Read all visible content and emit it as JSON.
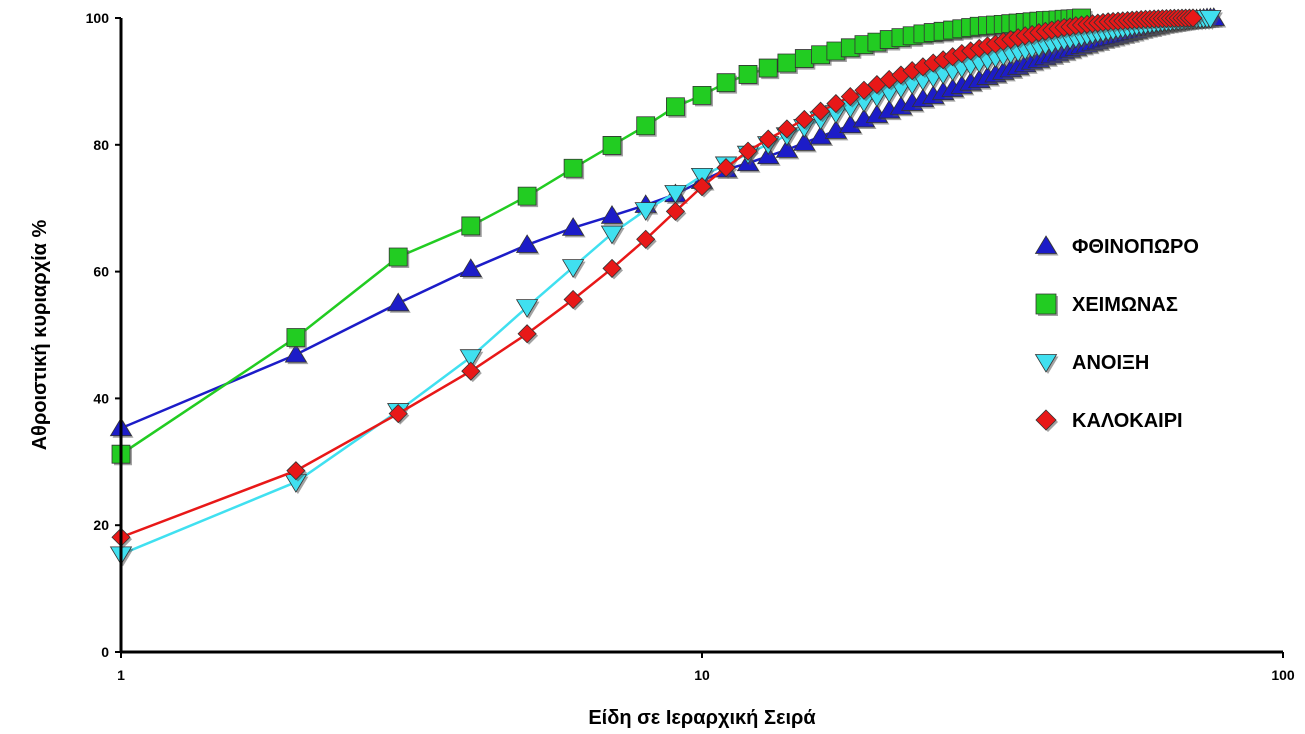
{
  "chart_data": {
    "type": "line",
    "title": "",
    "xlabel": "Είδη σε Ιεραρχική Σειρά",
    "ylabel": "Αθροιστική κυριαρχία %",
    "xscale": "log",
    "xlim": [
      1,
      100
    ],
    "ylim": [
      0,
      100
    ],
    "xticks": [
      {
        "value": 1,
        "label": "1"
      },
      {
        "value": 10,
        "label": "10"
      },
      {
        "value": 100,
        "label": "100"
      }
    ],
    "yticks": [
      {
        "value": 0,
        "label": "0"
      },
      {
        "value": 20,
        "label": "20"
      },
      {
        "value": 40,
        "label": "40"
      },
      {
        "value": 60,
        "label": "60"
      },
      {
        "value": 80,
        "label": "80"
      },
      {
        "value": 100,
        "label": "100"
      }
    ],
    "grid": false,
    "legend_position": "right",
    "series": [
      {
        "name": "ΦΘΙΝΟΠΩΡΟ",
        "color": "#1c1cc8",
        "marker": "triangle-up",
        "x": [
          1,
          2,
          3,
          4,
          5,
          6,
          7,
          8,
          9,
          10,
          11,
          12,
          13,
          14,
          15,
          16,
          17,
          18,
          19,
          20,
          21,
          22,
          23,
          24,
          25,
          26,
          27,
          28,
          29,
          30,
          31,
          32,
          33,
          34,
          35,
          36,
          37,
          38,
          39,
          40,
          41,
          42,
          43,
          44,
          45,
          46,
          47,
          48,
          49,
          50,
          51,
          52,
          53,
          54,
          55,
          56,
          57,
          58,
          59,
          60,
          61,
          62,
          63,
          64,
          65,
          66,
          67,
          68,
          69,
          70,
          71,
          72,
          73,
          74,
          75,
          76
        ],
        "values": [
          35.3,
          46.9,
          55.0,
          60.4,
          64.2,
          66.9,
          68.8,
          70.5,
          72.2,
          74.3,
          76.1,
          77.1,
          78.2,
          79.2,
          80.3,
          81.3,
          82.2,
          83.1,
          84.0,
          84.7,
          85.4,
          86.0,
          86.6,
          87.2,
          87.7,
          88.3,
          88.8,
          89.3,
          89.8,
          90.2,
          90.7,
          91.1,
          91.5,
          91.9,
          92.3,
          92.7,
          93.1,
          93.4,
          93.8,
          94.1,
          94.4,
          94.7,
          95.0,
          95.3,
          95.6,
          95.8,
          96.1,
          96.3,
          96.6,
          96.8,
          97.0,
          97.2,
          97.4,
          97.6,
          97.8,
          98.0,
          98.2,
          98.4,
          98.5,
          98.7,
          98.8,
          99.0,
          99.1,
          99.2,
          99.3,
          99.4,
          99.5,
          99.6,
          99.7,
          99.75,
          99.8,
          99.85,
          99.9,
          99.95,
          99.98,
          100.0
        ]
      },
      {
        "name": "ΧΕΙΜΩΝΑΣ",
        "color": "#22cc22",
        "marker": "square",
        "x": [
          1,
          2,
          3,
          4,
          5,
          6,
          7,
          8,
          9,
          10,
          11,
          12,
          13,
          14,
          15,
          16,
          17,
          18,
          19,
          20,
          21,
          22,
          23,
          24,
          25,
          26,
          27,
          28,
          29,
          30,
          31,
          32,
          33,
          34,
          35,
          36,
          37,
          38,
          39,
          40,
          41,
          42,
          43,
          44,
          45
        ],
        "values": [
          31.2,
          49.6,
          62.3,
          67.2,
          71.9,
          76.3,
          79.9,
          83.0,
          86.0,
          87.8,
          89.8,
          91.1,
          92.1,
          92.9,
          93.6,
          94.2,
          94.8,
          95.3,
          95.8,
          96.2,
          96.6,
          96.9,
          97.2,
          97.5,
          97.7,
          97.9,
          98.1,
          98.3,
          98.5,
          98.7,
          98.8,
          98.9,
          99.0,
          99.1,
          99.2,
          99.3,
          99.4,
          99.5,
          99.6,
          99.65,
          99.7,
          99.8,
          99.85,
          99.9,
          100.0
        ]
      },
      {
        "name": "ΑΝΟΙΞΗ",
        "color": "#40e0f0",
        "marker": "triangle-down",
        "x": [
          1,
          2,
          3,
          4,
          5,
          6,
          7,
          8,
          9,
          10,
          11,
          12,
          13,
          14,
          15,
          16,
          17,
          18,
          19,
          20,
          21,
          22,
          23,
          24,
          25,
          26,
          27,
          28,
          29,
          30,
          31,
          32,
          33,
          34,
          35,
          36,
          37,
          38,
          39,
          40,
          41,
          42,
          43,
          44,
          45,
          46,
          47,
          48,
          49,
          50,
          51,
          52,
          53,
          54,
          55,
          56,
          57,
          58,
          59,
          60,
          61,
          62,
          63,
          64,
          65,
          66,
          67,
          68,
          69,
          70,
          71,
          72,
          73,
          74,
          75
        ],
        "values": [
          15.4,
          26.8,
          38.0,
          46.5,
          54.4,
          60.7,
          66.0,
          69.7,
          72.4,
          75.1,
          76.9,
          78.6,
          80.1,
          81.5,
          82.8,
          84.0,
          85.0,
          85.9,
          86.8,
          87.6,
          88.3,
          89.0,
          89.6,
          90.2,
          90.7,
          91.2,
          91.7,
          92.2,
          92.6,
          93.0,
          93.4,
          93.8,
          94.1,
          94.4,
          94.7,
          95.0,
          95.3,
          95.5,
          95.8,
          96.0,
          96.3,
          96.5,
          96.7,
          96.9,
          97.1,
          97.3,
          97.5,
          97.7,
          97.8,
          98.0,
          98.1,
          98.3,
          98.4,
          98.5,
          98.7,
          98.8,
          98.9,
          99.0,
          99.1,
          99.2,
          99.3,
          99.4,
          99.45,
          99.5,
          99.6,
          99.65,
          99.7,
          99.75,
          99.8,
          99.85,
          99.9,
          99.93,
          99.96,
          99.98,
          100.0
        ]
      },
      {
        "name": "ΚΑΛΟΚΑΙΡΙ",
        "color": "#e81818",
        "marker": "diamond",
        "x": [
          1,
          2,
          3,
          4,
          5,
          6,
          7,
          8,
          9,
          10,
          11,
          12,
          13,
          14,
          15,
          16,
          17,
          18,
          19,
          20,
          21,
          22,
          23,
          24,
          25,
          26,
          27,
          28,
          29,
          30,
          31,
          32,
          33,
          34,
          35,
          36,
          37,
          38,
          39,
          40,
          41,
          42,
          43,
          44,
          45,
          46,
          47,
          48,
          49,
          50,
          51,
          52,
          53,
          54,
          55,
          56,
          57,
          58,
          59,
          60,
          61,
          62,
          63,
          64,
          65,
          66,
          67,
          68,
          69,
          70
        ],
        "values": [
          18.1,
          28.6,
          37.6,
          44.3,
          50.2,
          55.6,
          60.5,
          65.1,
          69.5,
          73.4,
          76.4,
          79.0,
          80.9,
          82.5,
          84.0,
          85.3,
          86.5,
          87.6,
          88.6,
          89.5,
          90.3,
          91.0,
          91.7,
          92.3,
          92.9,
          93.4,
          93.9,
          94.4,
          94.8,
          95.2,
          95.6,
          95.9,
          96.3,
          96.6,
          96.9,
          97.2,
          97.4,
          97.7,
          97.9,
          98.1,
          98.3,
          98.5,
          98.6,
          98.8,
          98.9,
          99.0,
          99.1,
          99.2,
          99.3,
          99.4,
          99.45,
          99.5,
          99.55,
          99.6,
          99.65,
          99.7,
          99.75,
          99.8,
          99.82,
          99.85,
          99.87,
          99.9,
          99.92,
          99.94,
          99.95,
          99.96,
          99.97,
          99.98,
          99.99,
          100.0
        ]
      }
    ]
  }
}
